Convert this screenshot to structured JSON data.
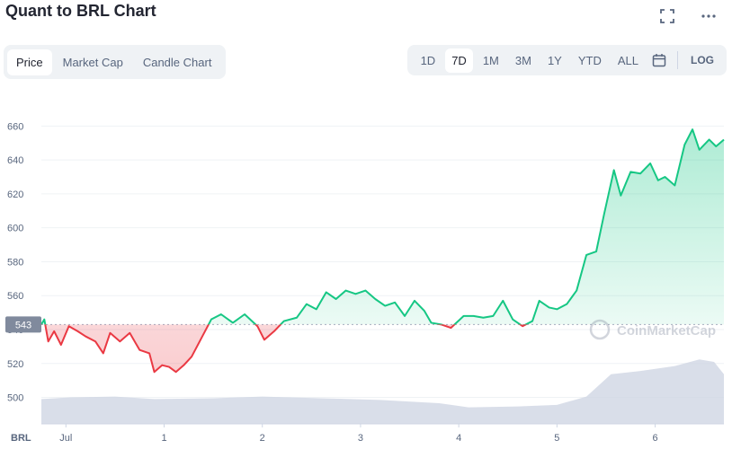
{
  "title": "Quant to BRL Chart",
  "icons": {
    "fullscreen": "fullscreen-icon",
    "more": "more-icon",
    "calendar": "calendar-icon"
  },
  "tabs": [
    {
      "label": "Price",
      "active": true
    },
    {
      "label": "Market Cap",
      "active": false
    },
    {
      "label": "Candle Chart",
      "active": false
    }
  ],
  "ranges": [
    {
      "label": "1D",
      "active": false
    },
    {
      "label": "7D",
      "active": true
    },
    {
      "label": "1M",
      "active": false
    },
    {
      "label": "3M",
      "active": false
    },
    {
      "label": "1Y",
      "active": false
    },
    {
      "label": "YTD",
      "active": false
    },
    {
      "label": "ALL",
      "active": false
    }
  ],
  "log_label": "LOG",
  "watermark": "CoinMarketCap",
  "colors": {
    "up": "#16c784",
    "down": "#ea3943",
    "grid": "#eff2f5",
    "volume": "#cfd6e4"
  },
  "chart_data": {
    "type": "line",
    "ylabel": "BRL",
    "ylim": [
      495,
      675
    ],
    "yticks": [
      500,
      520,
      540,
      560,
      580,
      600,
      620,
      640,
      660
    ],
    "xlim": [
      -1.25,
      5.7
    ],
    "xticks": [
      {
        "x": -1,
        "label": "Jul"
      },
      {
        "x": 0,
        "label": "1"
      },
      {
        "x": 1,
        "label": "2"
      },
      {
        "x": 2,
        "label": "3"
      },
      {
        "x": 3,
        "label": "4"
      },
      {
        "x": 4,
        "label": "5"
      },
      {
        "x": 5,
        "label": "6"
      }
    ],
    "baseline": 543,
    "baseline_label": "543",
    "series": [
      {
        "points": [
          [
            -1.25,
            543
          ],
          [
            -1.22,
            546
          ],
          [
            -1.18,
            533
          ],
          [
            -1.12,
            539
          ],
          [
            -1.05,
            531
          ],
          [
            -0.97,
            542
          ],
          [
            -0.88,
            539
          ],
          [
            -0.8,
            536
          ],
          [
            -0.7,
            533
          ],
          [
            -0.62,
            526
          ],
          [
            -0.55,
            538
          ],
          [
            -0.45,
            533
          ],
          [
            -0.35,
            538
          ],
          [
            -0.25,
            528
          ],
          [
            -0.15,
            526
          ],
          [
            -0.1,
            515
          ],
          [
            -0.02,
            519
          ],
          [
            0.05,
            518
          ],
          [
            0.12,
            515
          ],
          [
            0.2,
            519
          ],
          [
            0.28,
            524
          ],
          [
            0.38,
            535
          ],
          [
            0.48,
            546
          ],
          [
            0.58,
            549
          ],
          [
            0.7,
            544
          ],
          [
            0.82,
            549
          ],
          [
            0.95,
            542
          ],
          [
            1.02,
            534
          ],
          [
            1.12,
            539
          ],
          [
            1.22,
            545
          ],
          [
            1.35,
            547
          ],
          [
            1.45,
            555
          ],
          [
            1.55,
            552
          ],
          [
            1.65,
            562
          ],
          [
            1.75,
            558
          ],
          [
            1.85,
            563
          ],
          [
            1.95,
            561
          ],
          [
            2.05,
            563
          ],
          [
            2.15,
            558
          ],
          [
            2.25,
            554
          ],
          [
            2.35,
            556
          ],
          [
            2.45,
            548
          ],
          [
            2.55,
            557
          ],
          [
            2.65,
            551
          ],
          [
            2.72,
            544
          ],
          [
            2.82,
            543
          ],
          [
            2.92,
            541
          ],
          [
            3.05,
            548
          ],
          [
            3.15,
            548
          ],
          [
            3.25,
            547
          ],
          [
            3.35,
            548
          ],
          [
            3.45,
            557
          ],
          [
            3.55,
            546
          ],
          [
            3.65,
            542
          ],
          [
            3.75,
            545
          ],
          [
            3.82,
            557
          ],
          [
            3.92,
            553
          ],
          [
            4.0,
            552
          ],
          [
            4.1,
            555
          ],
          [
            4.2,
            563
          ],
          [
            4.3,
            584
          ],
          [
            4.4,
            586
          ],
          [
            4.48,
            608
          ],
          [
            4.58,
            634
          ],
          [
            4.65,
            619
          ],
          [
            4.75,
            633
          ],
          [
            4.85,
            632
          ],
          [
            4.95,
            638
          ],
          [
            5.03,
            628
          ],
          [
            5.1,
            630
          ],
          [
            5.2,
            625
          ],
          [
            5.3,
            649
          ],
          [
            5.38,
            658
          ],
          [
            5.45,
            646
          ],
          [
            5.55,
            652
          ],
          [
            5.62,
            648
          ],
          [
            5.7,
            652
          ]
        ]
      }
    ],
    "volume_profile": [
      [
        -1.25,
        0.3
      ],
      [
        -0.95,
        0.32
      ],
      [
        -0.5,
        0.33
      ],
      [
        -0.1,
        0.3
      ],
      [
        0.5,
        0.31
      ],
      [
        1.0,
        0.33
      ],
      [
        1.6,
        0.31
      ],
      [
        2.2,
        0.29
      ],
      [
        2.8,
        0.25
      ],
      [
        3.1,
        0.2
      ],
      [
        3.6,
        0.21
      ],
      [
        4.0,
        0.23
      ],
      [
        4.3,
        0.33
      ],
      [
        4.55,
        0.6
      ],
      [
        4.85,
        0.64
      ],
      [
        5.2,
        0.7
      ],
      [
        5.45,
        0.78
      ],
      [
        5.6,
        0.75
      ],
      [
        5.7,
        0.6
      ]
    ]
  }
}
